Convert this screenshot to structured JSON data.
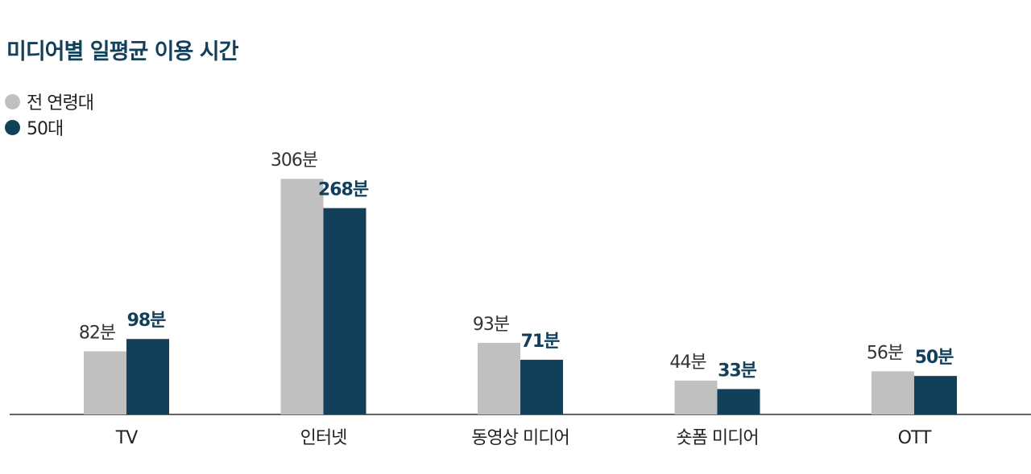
{
  "chart_data": {
    "type": "bar",
    "title": "미디어별 일평균 이용 시간",
    "categories": [
      "TV",
      "인터넷",
      "동영상 미디어",
      "숏폼 미디어",
      "OTT"
    ],
    "series": [
      {
        "name": "전 연령대",
        "values": [
          82,
          306,
          93,
          44,
          56
        ],
        "color": "#c0c0c0",
        "value_labels": [
          "82분",
          "306분",
          "93분",
          "44분",
          "56분"
        ]
      },
      {
        "name": "50대",
        "values": [
          98,
          268,
          71,
          33,
          50
        ],
        "color": "#123f5a",
        "value_labels": [
          "98분",
          "268분",
          "71분",
          "33분",
          "50분"
        ]
      }
    ],
    "value_unit": "분",
    "legend_position": "top-left",
    "grid": false
  }
}
